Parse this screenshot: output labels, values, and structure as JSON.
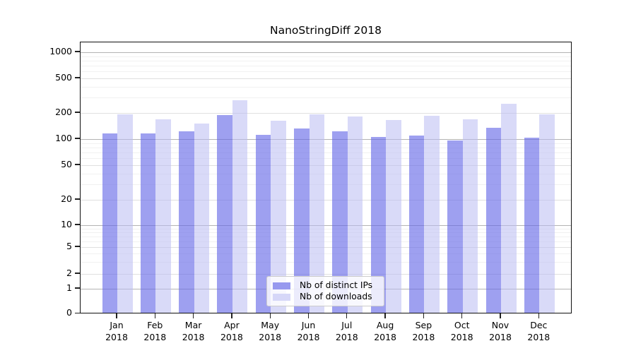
{
  "chart_data": {
    "type": "bar",
    "title": "NanoStringDiff 2018",
    "year_label": "2018",
    "categories": [
      "Jan",
      "Feb",
      "Mar",
      "Apr",
      "May",
      "Jun",
      "Jul",
      "Aug",
      "Sep",
      "Oct",
      "Nov",
      "Dec"
    ],
    "series": [
      {
        "name": "Nb of distinct IPs",
        "fill_color": "rgba(99,102,231,0.62)",
        "legend_color": "#9799ef",
        "values": [
          117,
          116,
          122,
          188,
          112,
          133,
          123,
          106,
          110,
          96,
          135,
          103
        ]
      },
      {
        "name": "Nb of downloads",
        "fill_color": "rgba(186,188,243,0.55)",
        "legend_color": "#d6d7f8",
        "values": [
          192,
          168,
          150,
          280,
          163,
          194,
          183,
          167,
          187,
          168,
          255,
          192
        ]
      }
    ],
    "y_ticks": [
      0,
      1,
      2,
      5,
      10,
      20,
      50,
      100,
      200,
      500,
      1000
    ],
    "ylim": [
      0,
      1000
    ],
    "y_scale": "log-like",
    "grid": true,
    "legend_position": "lower center",
    "grid_colors": {
      "major": "#b3b3b3",
      "secondary": "#e0e0e0",
      "minor": "#f1f1f1"
    }
  }
}
